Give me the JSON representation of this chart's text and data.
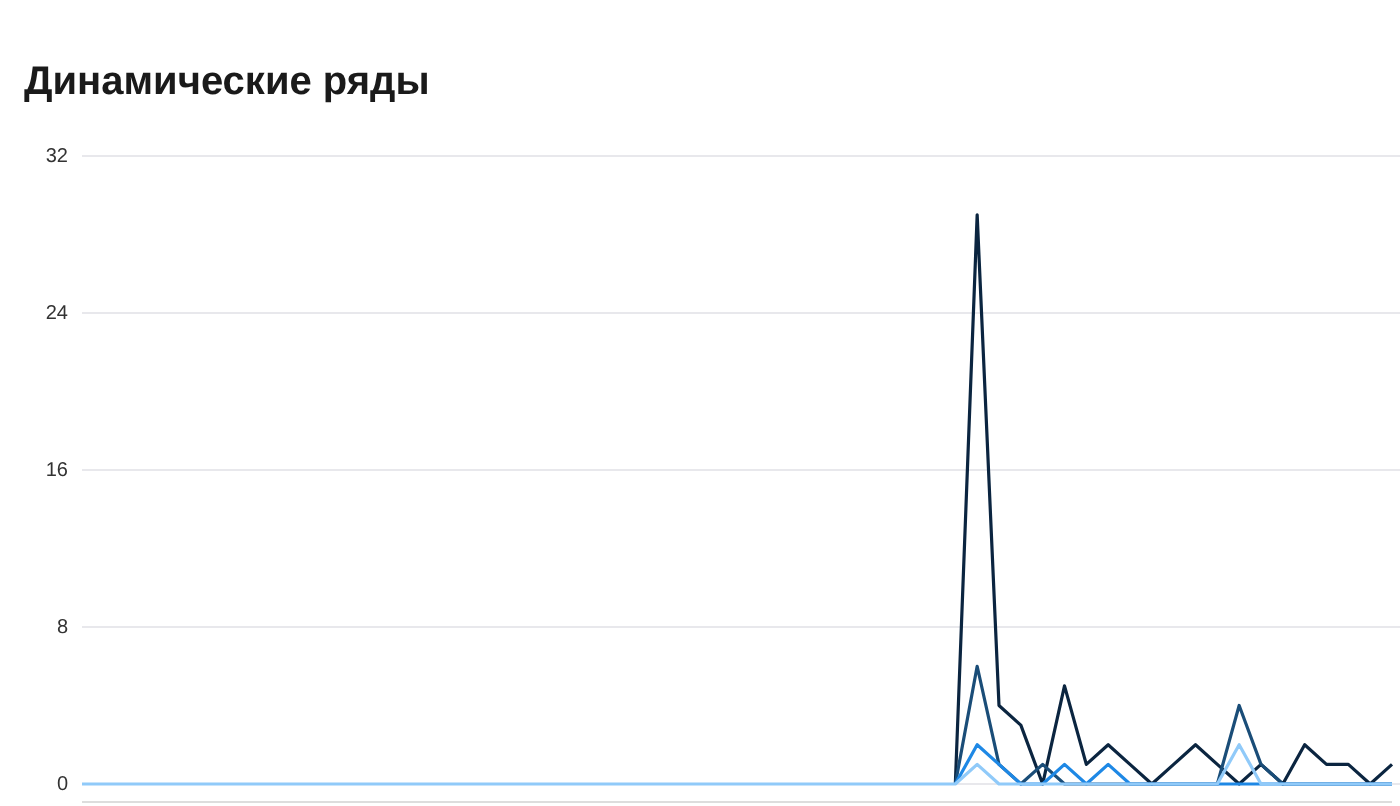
{
  "chart_data": {
    "type": "line",
    "title": "Динамические ряды",
    "categories": [
      null,
      null,
      null,
      null,
      null,
      null,
      null,
      null,
      null,
      null,
      null,
      null,
      null,
      null,
      null,
      null,
      null,
      null,
      null,
      null,
      null,
      null,
      null,
      null,
      null,
      null,
      null,
      null,
      null,
      null,
      null,
      null,
      null,
      null,
      null,
      null,
      null,
      null,
      null,
      null,
      null,
      null,
      null,
      null,
      null,
      null,
      null,
      null,
      null,
      null,
      null,
      null,
      null,
      null,
      null,
      null,
      null,
      null,
      null,
      null,
      null
    ],
    "series": [
      {
        "color": "#0b2540",
        "values": [
          null,
          null,
          null,
          null,
          null,
          null,
          null,
          null,
          null,
          null,
          null,
          null,
          null,
          null,
          null,
          null,
          null,
          null,
          null,
          null,
          null,
          null,
          null,
          null,
          null,
          null,
          null,
          null,
          null,
          null,
          null,
          null,
          null,
          null,
          null,
          null,
          null,
          null,
          null,
          null,
          0,
          29,
          4,
          3,
          0,
          5,
          1,
          2,
          1,
          0,
          1,
          2,
          1,
          0,
          1,
          0,
          2,
          1,
          1,
          0,
          1
        ]
      },
      {
        "color": "#1a4d78",
        "values": [
          null,
          null,
          null,
          null,
          null,
          null,
          null,
          null,
          null,
          null,
          null,
          null,
          null,
          null,
          null,
          null,
          null,
          null,
          null,
          null,
          null,
          null,
          null,
          null,
          null,
          null,
          null,
          null,
          null,
          null,
          null,
          null,
          null,
          null,
          null,
          null,
          null,
          null,
          null,
          null,
          0,
          6,
          1,
          0,
          1,
          0,
          0,
          0,
          0,
          0,
          0,
          0,
          0,
          4,
          1,
          0,
          0,
          0,
          0,
          0,
          0
        ]
      },
      {
        "color": "#1e88e5",
        "values": [
          null,
          null,
          null,
          null,
          null,
          null,
          null,
          null,
          null,
          null,
          null,
          null,
          null,
          null,
          null,
          null,
          null,
          null,
          null,
          null,
          null,
          null,
          null,
          null,
          null,
          null,
          null,
          null,
          null,
          null,
          null,
          null,
          null,
          null,
          null,
          null,
          null,
          null,
          null,
          null,
          0,
          2,
          1,
          0,
          0,
          1,
          0,
          1,
          0,
          0,
          0,
          0,
          0,
          0,
          0,
          0,
          0,
          0,
          0,
          0,
          0
        ]
      },
      {
        "color": "#90caf9",
        "values": [
          0,
          0,
          0,
          0,
          0,
          0,
          0,
          0,
          0,
          0,
          0,
          0,
          0,
          0,
          0,
          0,
          0,
          0,
          0,
          0,
          0,
          0,
          0,
          0,
          0,
          0,
          0,
          0,
          0,
          0,
          0,
          0,
          0,
          0,
          0,
          0,
          0,
          0,
          0,
          0,
          0,
          1,
          0,
          0,
          0,
          0,
          0,
          0,
          0,
          0,
          0,
          0,
          0,
          2,
          0,
          0,
          0,
          0,
          0,
          0,
          0
        ]
      }
    ],
    "ylim": [
      0,
      32
    ],
    "yticks": [
      0,
      8,
      16,
      24,
      32
    ],
    "grid": "y",
    "marker": "none",
    "line_style": "solid"
  }
}
